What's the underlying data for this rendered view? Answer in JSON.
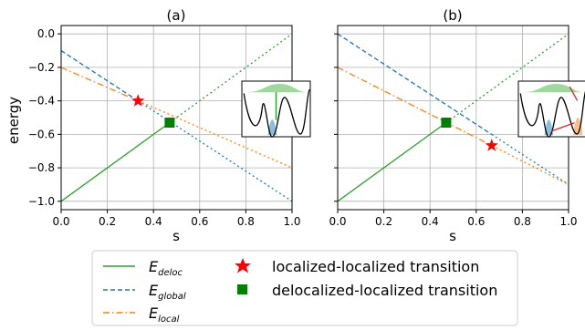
{
  "chart_data": [
    {
      "type": "line",
      "panel_title": "(a)",
      "xlabel": "s",
      "ylabel": "energy",
      "xlim": [
        0.0,
        1.0
      ],
      "ylim": [
        -1.05,
        0.05
      ],
      "xticks": [
        "0.0",
        "0.2",
        "0.4",
        "0.6",
        "0.8",
        "1.0"
      ],
      "xtick_values": [
        0.0,
        0.2,
        0.4,
        0.6,
        0.8,
        1.0
      ],
      "yticks": [
        "0.0",
        "−0.2",
        "−0.4",
        "−0.6",
        "−0.8",
        "−1.0"
      ],
      "ytick_values": [
        0.0,
        -0.2,
        -0.4,
        -0.6,
        -0.8,
        -1.0
      ],
      "grid": true,
      "series": [
        {
          "key": "deloc",
          "x": [
            0.0,
            1.0
          ],
          "y": [
            -1.0,
            0.0
          ],
          "solid_until": 0.47,
          "color": "#2ca02c"
        },
        {
          "key": "global",
          "x": [
            0.0,
            1.0
          ],
          "y": [
            -0.1,
            -1.0
          ],
          "solid_until": 0.333,
          "color": "#1f77b4"
        },
        {
          "key": "local",
          "x": [
            0.0,
            1.0
          ],
          "y": [
            -0.2,
            -0.8
          ],
          "solid_until": 0.333,
          "color": "#ff7f0e"
        }
      ],
      "markers": [
        {
          "kind": "star",
          "x": 0.333,
          "y": -0.4,
          "color": "#ff0000"
        },
        {
          "kind": "square",
          "x": 0.47,
          "y": -0.53,
          "color": "#008000"
        }
      ],
      "inset": {
        "variant": "a"
      }
    },
    {
      "type": "line",
      "panel_title": "(b)",
      "xlabel": "s",
      "ylabel": "",
      "xlim": [
        0.0,
        1.0
      ],
      "ylim": [
        -1.05,
        0.05
      ],
      "xticks": [
        "0.0",
        "0.2",
        "0.4",
        "0.6",
        "0.8",
        "1.0"
      ],
      "xtick_values": [
        0.0,
        0.2,
        0.4,
        0.6,
        0.8,
        1.0
      ],
      "yticks": [],
      "ytick_values": [
        0.0,
        -0.2,
        -0.4,
        -0.6,
        -0.8,
        -1.0
      ],
      "grid": true,
      "series": [
        {
          "key": "deloc",
          "x": [
            0.0,
            1.0
          ],
          "y": [
            -1.0,
            0.0
          ],
          "solid_until": 0.47,
          "color": "#2ca02c"
        },
        {
          "key": "global",
          "x": [
            0.0,
            1.0
          ],
          "y": [
            0.0,
            -0.9
          ],
          "solid_until": 0.667,
          "color": "#1f77b4"
        },
        {
          "key": "local",
          "x": [
            0.0,
            1.0
          ],
          "y": [
            -0.2,
            -0.9
          ],
          "solid_until": 0.667,
          "color": "#ff7f0e"
        }
      ],
      "markers": [
        {
          "kind": "star",
          "x": 0.667,
          "y": -0.667,
          "color": "#ff0000"
        },
        {
          "kind": "square",
          "x": 0.47,
          "y": -0.53,
          "color": "#008000"
        }
      ],
      "inset": {
        "variant": "b"
      }
    }
  ],
  "legend": {
    "placement": "bottom",
    "entries": [
      {
        "sym": "E",
        "sub": "deloc",
        "style": "solid",
        "color": "#2ca02c"
      },
      {
        "sym": "E",
        "sub": "global",
        "style": "dashed",
        "color": "#1f77b4"
      },
      {
        "sym": "E",
        "sub": "local",
        "style": "dashdot",
        "color": "#ff7f0e"
      },
      {
        "label": "localized-localized transition",
        "marker": "star",
        "color": "#ff0000"
      },
      {
        "label": "delocalized-localized transition",
        "marker": "square",
        "color": "#008000"
      }
    ]
  }
}
